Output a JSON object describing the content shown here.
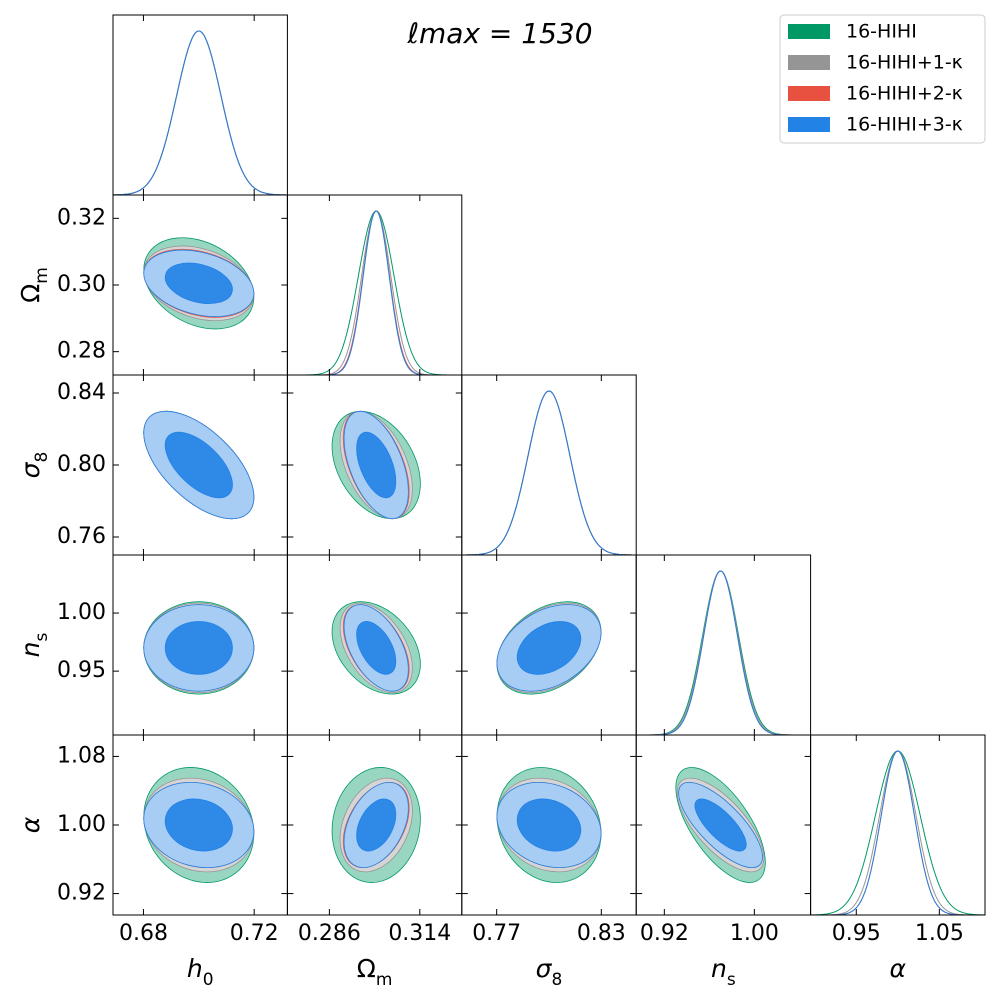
{
  "chart_data": {
    "type": "corner",
    "title": "ℓmax = 1530",
    "params": [
      {
        "label": [
          "h",
          "0"
        ],
        "range": [
          0.669,
          0.732
        ],
        "xticks": [
          0.68,
          0.72
        ]
      },
      {
        "label": [
          "Ω",
          "m"
        ],
        "range": [
          0.273,
          0.327
        ],
        "xticks": [
          0.286,
          0.314
        ],
        "yticks": [
          0.28,
          {
            "value": 0.3,
            "label": "0.30"
          },
          0.32
        ]
      },
      {
        "label": [
          "σ",
          "8"
        ],
        "range": [
          0.75,
          0.85
        ],
        "xticks": [
          0.77,
          0.83
        ],
        "yticks": [
          0.76,
          {
            "value": 0.8,
            "label": "0.80"
          },
          0.84
        ]
      },
      {
        "label": [
          "n",
          "s"
        ],
        "range": [
          0.895,
          1.05
        ],
        "xticks": [
          0.92,
          {
            "value": 1,
            "label": "1.00"
          }
        ],
        "yticks": [
          0.95,
          {
            "value": 1,
            "label": "1.00"
          }
        ]
      },
      {
        "label": [
          "α"
        ],
        "range": [
          0.895,
          1.105
        ],
        "xticks": [
          0.95,
          1.05
        ],
        "yticks": [
          0.92,
          {
            "value": 1,
            "label": "1.00"
          },
          1.08
        ]
      }
    ],
    "series": [
      {
        "name": "16-HIHI",
        "color": "#009966",
        "mean": [
          0.7,
          0.3005,
          0.8,
          0.97,
          1.0
        ],
        "sigma": [
          0.008,
          0.0055,
          0.012,
          0.016,
          0.027
        ],
        "corr": [
          [
            -0.3
          ],
          [
            -0.6,
            -0.35
          ],
          [
            0,
            -0.35,
            0.35
          ],
          [
            -0.15,
            0.1,
            -0.15,
            -0.65
          ]
        ]
      },
      {
        "name": "16-HIHI+1-κ",
        "color": "#959595",
        "mean": [
          0.7,
          0.3005,
          0.8,
          0.97,
          1.0
        ],
        "sigma": [
          0.008,
          0.0045,
          0.012,
          0.0155,
          0.022
        ],
        "corr": [
          [
            -0.3
          ],
          [
            -0.6,
            -0.45
          ],
          [
            0,
            -0.45,
            0.35
          ],
          [
            -0.15,
            0.3,
            -0.18,
            -0.7
          ]
        ]
      },
      {
        "name": "16-HIHI+2-κ",
        "color": "#e8503f",
        "mean": [
          0.7,
          0.3005,
          0.8,
          0.97,
          1.0
        ],
        "sigma": [
          0.008,
          0.0041,
          0.012,
          0.015,
          0.02
        ],
        "corr": [
          [
            -0.3
          ],
          [
            -0.6,
            -0.5
          ],
          [
            0,
            -0.5,
            0.35
          ],
          [
            -0.15,
            0.4,
            -0.2,
            -0.75
          ]
        ]
      },
      {
        "name": "16-HIHI+3-κ",
        "color": "#2282e6",
        "mean": [
          0.7,
          0.3005,
          0.8,
          0.97,
          1.0
        ],
        "sigma": [
          0.008,
          0.004,
          0.012,
          0.015,
          0.02
        ],
        "corr": [
          [
            -0.3
          ],
          [
            -0.6,
            -0.5
          ],
          [
            0,
            -0.5,
            0.35
          ],
          [
            -0.15,
            0.4,
            -0.2,
            -0.75
          ]
        ]
      }
    ],
    "legend": "upper right"
  }
}
